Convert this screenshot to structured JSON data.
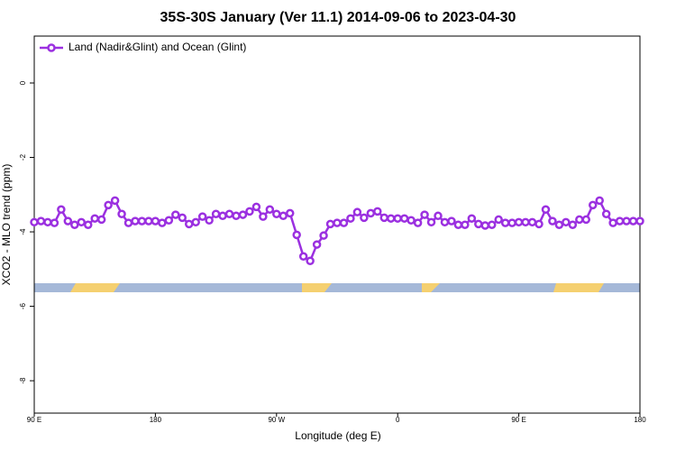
{
  "chart_data": {
    "type": "line",
    "title": "35S-30S January (Ver 11.1)   2014-09-06 to 2023-04-30",
    "xlabel": "Longitude (deg E)",
    "ylabel": "XCO2 - MLO trend (ppm)",
    "x": [
      90,
      95,
      100,
      105,
      110,
      115,
      120,
      125,
      130,
      135,
      140,
      145,
      150,
      155,
      160,
      165,
      170,
      175,
      180,
      185,
      190,
      195,
      200,
      205,
      210,
      215,
      220,
      225,
      230,
      235,
      240,
      245,
      250,
      255,
      260,
      265,
      270,
      275,
      280,
      285,
      290,
      295,
      300,
      305,
      310,
      315,
      320,
      325,
      330,
      335,
      340,
      345,
      350,
      355,
      360,
      365,
      370,
      375,
      380,
      385,
      390,
      395,
      400,
      405,
      410,
      415,
      420,
      425,
      430,
      435,
      440,
      445,
      450,
      455,
      460,
      465,
      470,
      475,
      480,
      485,
      490,
      495,
      500,
      505,
      510,
      515,
      520,
      525,
      530,
      535,
      540
    ],
    "series": [
      {
        "name": "Land (Nadir&Glint) and Ocean (Glint)",
        "color": "#9b30e0",
        "values": [
          -3.74,
          -3.71,
          -3.74,
          -3.76,
          -3.4,
          -3.71,
          -3.81,
          -3.74,
          -3.81,
          -3.64,
          -3.67,
          -3.28,
          -3.16,
          -3.52,
          -3.76,
          -3.71,
          -3.71,
          -3.71,
          -3.71,
          -3.76,
          -3.69,
          -3.54,
          -3.62,
          -3.79,
          -3.74,
          -3.59,
          -3.69,
          -3.52,
          -3.57,
          -3.52,
          -3.57,
          -3.54,
          -3.45,
          -3.33,
          -3.59,
          -3.4,
          -3.52,
          -3.57,
          -3.5,
          -4.08,
          -4.66,
          -4.78,
          -4.34,
          -4.1,
          -3.79,
          -3.76,
          -3.76,
          -3.64,
          -3.47,
          -3.62,
          -3.5,
          -3.45,
          -3.62,
          -3.64,
          -3.64,
          -3.64,
          -3.69,
          -3.76,
          -3.54,
          -3.74,
          -3.57,
          -3.74,
          -3.71,
          -3.81,
          -3.81,
          -3.64,
          -3.79,
          -3.83,
          -3.81,
          -3.67,
          -3.76,
          -3.76,
          -3.74,
          -3.74,
          -3.74,
          -3.79,
          -3.4,
          -3.71,
          -3.81,
          -3.74,
          -3.81,
          -3.67,
          -3.67,
          -3.28,
          -3.16,
          -3.52,
          -3.76,
          -3.71,
          -3.71,
          -3.71,
          -3.71
        ]
      }
    ],
    "xlim": [
      90,
      540
    ],
    "xticks": [
      {
        "value": 90,
        "label": "90 E"
      },
      180,
      {
        "value": 270,
        "label": "90 W"
      },
      {
        "value": 360,
        "label": "0"
      },
      {
        "value": 450,
        "label": "90 E"
      },
      {
        "value": 540,
        "label": "180"
      }
    ],
    "ylim": [
      -8.87,
      1.26
    ],
    "yticks": [
      0,
      -2,
      -4,
      -6,
      -8
    ],
    "legend": "top-left"
  }
}
